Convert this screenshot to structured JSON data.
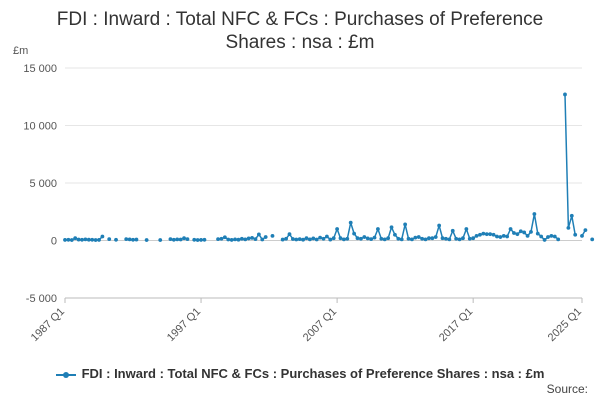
{
  "colors": {
    "series": "#1f7fb6",
    "grid": "#e6e6e6",
    "axis": "#bbbbbb",
    "zero_line": "#cccccc"
  },
  "source_label": "Source:",
  "chart_data": {
    "type": "line",
    "title_lines": [
      "FDI : Inward : Total NFC & FCs : Purchases of Preference",
      "Shares : nsa : £m"
    ],
    "ylabel": "£m",
    "xlabel": "",
    "ylim": [
      -5000,
      15000
    ],
    "y_ticks": [
      -5000,
      0,
      5000,
      10000,
      15000
    ],
    "y_tick_labels": [
      "-5 000",
      "0",
      "5 000",
      "10 000",
      "15 000"
    ],
    "x_ticks": [
      "1987 Q1",
      "1997 Q1",
      "2007 Q1",
      "2017 Q1",
      "2025 Q1"
    ],
    "x_range": [
      "1987 Q1",
      "2025 Q1"
    ],
    "legend_position": "bottom",
    "grid": true,
    "series": [
      {
        "name": "FDI : Inward : Total NFC & FCs : Purchases of Preference Shares : nsa : £m",
        "points": [
          [
            "1987 Q1",
            50
          ],
          [
            "1987 Q2",
            60
          ],
          [
            "1987 Q3",
            40
          ],
          [
            "1987 Q4",
            200
          ],
          [
            "1988 Q1",
            80
          ],
          [
            "1988 Q2",
            60
          ],
          [
            "1988 Q3",
            100
          ],
          [
            "1988 Q4",
            70
          ],
          [
            "1989 Q1",
            60
          ],
          [
            "1989 Q2",
            40
          ],
          [
            "1989 Q3",
            50
          ],
          [
            "1989 Q4",
            350
          ],
          [
            "1990 Q2",
            120
          ],
          [
            "1990 Q4",
            60
          ],
          [
            "1991 Q3",
            120
          ],
          [
            "1991 Q4",
            100
          ],
          [
            "1992 Q1",
            60
          ],
          [
            "1992 Q2",
            80
          ],
          [
            "1993 Q1",
            40
          ],
          [
            "1994 Q1",
            40
          ],
          [
            "1994 Q4",
            120
          ],
          [
            "1995 Q1",
            60
          ],
          [
            "1995 Q2",
            100
          ],
          [
            "1995 Q3",
            90
          ],
          [
            "1995 Q4",
            200
          ],
          [
            "1996 Q1",
            120
          ],
          [
            "1996 Q3",
            60
          ],
          [
            "1996 Q4",
            40
          ],
          [
            "1997 Q1",
            50
          ],
          [
            "1997 Q2",
            60
          ],
          [
            "1998 Q2",
            120
          ],
          [
            "1998 Q3",
            150
          ],
          [
            "1998 Q4",
            280
          ],
          [
            "1999 Q1",
            90
          ],
          [
            "1999 Q2",
            50
          ],
          [
            "1999 Q3",
            100
          ],
          [
            "1999 Q4",
            70
          ],
          [
            "2000 Q1",
            150
          ],
          [
            "2000 Q2",
            100
          ],
          [
            "2000 Q3",
            180
          ],
          [
            "2000 Q4",
            230
          ],
          [
            "2001 Q1",
            120
          ],
          [
            "2001 Q2",
            530
          ],
          [
            "2001 Q3",
            90
          ],
          [
            "2001 Q4",
            300
          ],
          [
            "2002 Q2",
            400
          ],
          [
            "2003 Q1",
            80
          ],
          [
            "2003 Q2",
            150
          ],
          [
            "2003 Q3",
            550
          ],
          [
            "2003 Q4",
            130
          ],
          [
            "2004 Q1",
            90
          ],
          [
            "2004 Q2",
            120
          ],
          [
            "2004 Q3",
            70
          ],
          [
            "2004 Q4",
            200
          ],
          [
            "2005 Q1",
            100
          ],
          [
            "2005 Q2",
            180
          ],
          [
            "2005 Q3",
            90
          ],
          [
            "2005 Q4",
            250
          ],
          [
            "2006 Q1",
            150
          ],
          [
            "2006 Q2",
            350
          ],
          [
            "2006 Q3",
            80
          ],
          [
            "2006 Q4",
            200
          ],
          [
            "2007 Q1",
            1000
          ],
          [
            "2007 Q2",
            200
          ],
          [
            "2007 Q3",
            100
          ],
          [
            "2007 Q4",
            150
          ],
          [
            "2008 Q1",
            1550
          ],
          [
            "2008 Q2",
            600
          ],
          [
            "2008 Q3",
            200
          ],
          [
            "2008 Q4",
            150
          ],
          [
            "2009 Q1",
            300
          ],
          [
            "2009 Q2",
            180
          ],
          [
            "2009 Q3",
            120
          ],
          [
            "2009 Q4",
            250
          ],
          [
            "2010 Q1",
            1000
          ],
          [
            "2010 Q2",
            150
          ],
          [
            "2010 Q3",
            100
          ],
          [
            "2010 Q4",
            200
          ],
          [
            "2011 Q1",
            1150
          ],
          [
            "2011 Q2",
            500
          ],
          [
            "2011 Q3",
            150
          ],
          [
            "2011 Q4",
            100
          ],
          [
            "2012 Q1",
            1400
          ],
          [
            "2012 Q2",
            150
          ],
          [
            "2012 Q3",
            100
          ],
          [
            "2012 Q4",
            250
          ],
          [
            "2013 Q1",
            300
          ],
          [
            "2013 Q2",
            150
          ],
          [
            "2013 Q3",
            100
          ],
          [
            "2013 Q4",
            200
          ],
          [
            "2014 Q1",
            200
          ],
          [
            "2014 Q2",
            300
          ],
          [
            "2014 Q3",
            1300
          ],
          [
            "2014 Q4",
            200
          ],
          [
            "2015 Q1",
            150
          ],
          [
            "2015 Q2",
            100
          ],
          [
            "2015 Q3",
            850
          ],
          [
            "2015 Q4",
            150
          ],
          [
            "2016 Q1",
            100
          ],
          [
            "2016 Q2",
            200
          ],
          [
            "2016 Q3",
            1000
          ],
          [
            "2016 Q4",
            150
          ],
          [
            "2017 Q1",
            200
          ],
          [
            "2017 Q2",
            400
          ],
          [
            "2017 Q3",
            500
          ],
          [
            "2017 Q4",
            600
          ],
          [
            "2018 Q1",
            550
          ],
          [
            "2018 Q2",
            550
          ],
          [
            "2018 Q3",
            500
          ],
          [
            "2018 Q4",
            350
          ],
          [
            "2019 Q1",
            300
          ],
          [
            "2019 Q2",
            400
          ],
          [
            "2019 Q3",
            350
          ],
          [
            "2019 Q4",
            1000
          ],
          [
            "2020 Q1",
            650
          ],
          [
            "2020 Q2",
            550
          ],
          [
            "2020 Q3",
            800
          ],
          [
            "2020 Q4",
            700
          ],
          [
            "2021 Q1",
            400
          ],
          [
            "2021 Q2",
            750
          ],
          [
            "2021 Q3",
            2300
          ],
          [
            "2021 Q4",
            600
          ],
          [
            "2022 Q1",
            350
          ],
          [
            "2022 Q2",
            50
          ],
          [
            "2022 Q3",
            300
          ],
          [
            "2022 Q4",
            400
          ],
          [
            "2023 Q1",
            350
          ],
          [
            "2023 Q2",
            100
          ],
          [
            "2023 Q4",
            12700
          ],
          [
            "2024 Q1",
            1100
          ],
          [
            "2024 Q2",
            2150
          ],
          [
            "2024 Q3",
            500
          ],
          [
            "2025 Q1",
            400
          ],
          [
            "2025 Q2",
            900
          ],
          [
            "2025 Q4",
            100
          ]
        ]
      }
    ]
  }
}
